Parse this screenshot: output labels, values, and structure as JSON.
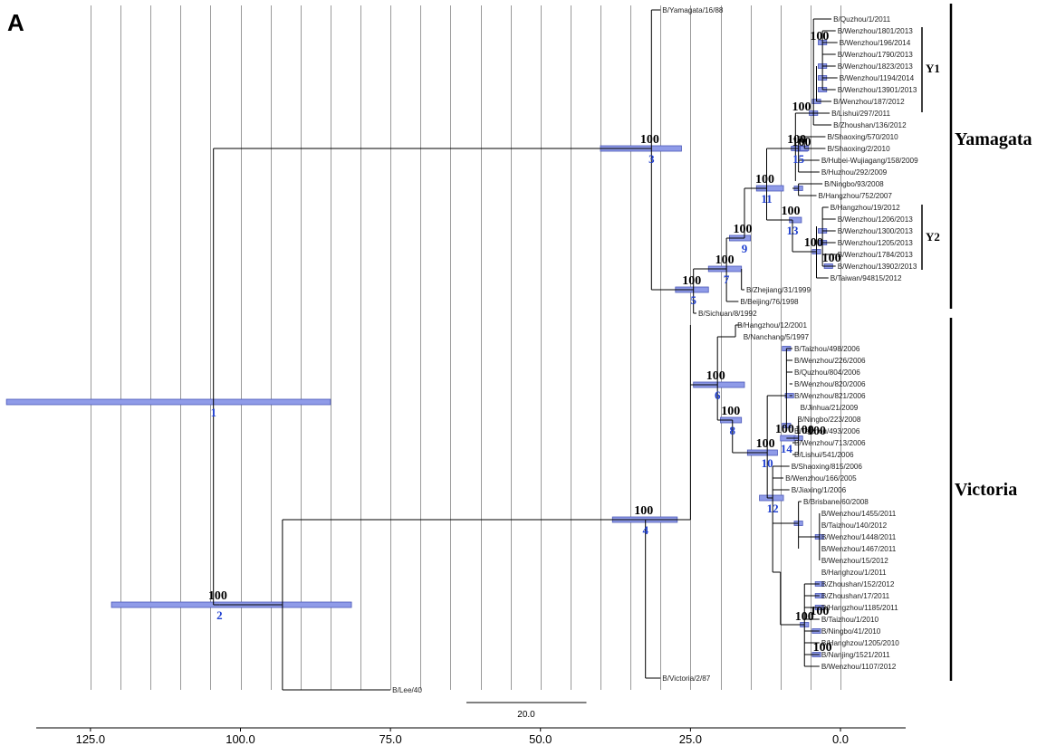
{
  "panel_label": "A",
  "axis": {
    "ticks": [
      {
        "value": 125,
        "label": "125.0"
      },
      {
        "value": 100,
        "label": "100.0"
      },
      {
        "value": 75,
        "label": "75.0"
      },
      {
        "value": 50,
        "label": "50.0"
      },
      {
        "value": 25,
        "label": "25.0"
      },
      {
        "value": 0,
        "label": "0.0"
      }
    ],
    "gridlines_at": [
      125,
      120,
      115,
      110,
      105,
      100,
      95,
      90,
      85,
      80,
      75,
      70,
      65,
      60,
      55,
      50,
      45,
      40,
      35,
      30,
      25,
      20,
      15,
      10,
      5,
      0
    ]
  },
  "scale_bar": {
    "label": "20.0",
    "length": 20
  },
  "clades": [
    {
      "label": "Yamagata"
    },
    {
      "label": "Victoria"
    }
  ],
  "subclades": [
    {
      "label": "Y1"
    },
    {
      "label": "Y2"
    }
  ],
  "taxa": [
    "B/Yamagata/16/88",
    "B/Quzhou/1/2011",
    "B/Wenzhou/1801/2013",
    "B/Wenzhou/196/2014",
    "B/Wenzhou/1790/2013",
    "B/Wenzhou/1823/2013",
    "B/Wenzhou/1194/2014",
    "B/Wenzhou/13901/2013",
    "B/Wenzhou/187/2012",
    "B/Lishui/297/2011",
    "B/Zhoushan/136/2012",
    "B/Shaoxing/570/2010",
    "B/Shaoxing/2/2010",
    "B/Hubei-Wujiagang/158/2009",
    "B/Huzhou/292/2009",
    "B/Ningbo/93/2008",
    "B/Hangzhou/752/2007",
    "B/Hangzhou/19/2012",
    "B/Wenzhou/1206/2013",
    "B/Wenzhou/1300/2013",
    "B/Wenzhou/1205/2013",
    "B/Wenzhou/1784/2013",
    "B/Wenzhou/13902/2013",
    "B/Taiwan/94815/2012",
    "B/Zhejiang/31/1999",
    "B/Beijing/76/1998",
    "B/Sichuan/8/1992",
    "B/Hangzhou/12/2001",
    "B/Nanchang/5/1997",
    "B/Taizhou/498/2006",
    "B/Wenzhou/226/2006",
    "B/Quzhou/804/2006",
    "B/Wenzhou/820/2006",
    "B/Wenzhou/821/2006",
    "B/Jinhua/21/2009",
    "B/Ningbo/223/2008",
    "B/Taizhou/493/2006",
    "B/Wenzhou/713/2006",
    "B/Lishui/541/2006",
    "B/Shaoxing/815/2006",
    "B/Wenzhou/166/2005",
    "B/Jiaxing/1/2006",
    "B/Brisbane/60/2008",
    "B/Wenzhou/1455/2011",
    "B/Taizhou/140/2012",
    "B/Wenzhou/1448/2011",
    "B/Wenzhou/1467/2011",
    "B/Wenzhou/15/2012",
    "B/Hanghzou/1/2011",
    "B/Zhoushan/152/2012",
    "B/Zhoushan/17/2011",
    "B/Hangzhou/1185/2011",
    "B/Taizhou/1/2010",
    "B/Ningbo/41/2010",
    "B/Hanghzou/1205/2010",
    "B/Nanjing/1521/2011",
    "B/Wenzhou/1107/2012",
    "B/Victoria/2/87",
    "B/Lee/40"
  ],
  "nodes": [
    {
      "id": "1",
      "age": 104.5,
      "hpd": [
        139,
        85
      ],
      "support": ""
    },
    {
      "id": "2",
      "age": 103.5,
      "hpd": [
        121.5,
        81.5
      ],
      "support": "100"
    },
    {
      "id": "3",
      "age": 31.5,
      "hpd": [
        40,
        26.5
      ],
      "support": "100"
    },
    {
      "id": "4",
      "age": 32.5,
      "hpd": [
        38,
        27.2
      ],
      "support": "100"
    },
    {
      "id": "5",
      "age": 24.5,
      "hpd": [
        27.5,
        22
      ],
      "support": "100"
    },
    {
      "id": "6",
      "age": 20.5,
      "hpd": [
        24.5,
        16
      ],
      "support": "100"
    },
    {
      "id": "7",
      "age": 19,
      "hpd": [
        22,
        16.5
      ],
      "support": "100"
    },
    {
      "id": "8",
      "age": 18,
      "hpd": [
        20,
        16.5
      ],
      "support": "100"
    },
    {
      "id": "9",
      "age": 16,
      "hpd": [
        18.5,
        15
      ],
      "support": "100"
    },
    {
      "id": "10",
      "age": 12.2,
      "hpd": [
        15.5,
        10.5
      ],
      "support": "100"
    },
    {
      "id": "11",
      "age": 12.3,
      "hpd": [
        14,
        9.5
      ],
      "support": "100"
    },
    {
      "id": "12",
      "age": 11.3,
      "hpd": [
        13.5,
        9.5
      ],
      "support": ""
    },
    {
      "id": "13",
      "age": 8,
      "hpd": [
        8.5,
        6.5
      ],
      "support": "100"
    },
    {
      "id": "14",
      "age": 9,
      "hpd": [
        10,
        7.5
      ],
      "support": "100"
    },
    {
      "id": "15",
      "age": 7,
      "hpd": [
        7.5,
        5.5
      ],
      "support": "100"
    }
  ],
  "extra_supports": [
    "100",
    "100",
    "100",
    "100",
    "100",
    "100",
    "100",
    "100",
    "100",
    "100"
  ]
}
